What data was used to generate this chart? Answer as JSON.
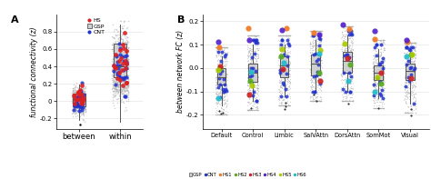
{
  "panel_A": {
    "title": "A",
    "ylabel": "functional connectivity (z)",
    "categories": [
      "between",
      "within"
    ],
    "box_between": {
      "q1": -0.06,
      "median": 0.01,
      "q3": 0.09,
      "wl": -0.22,
      "wh": 0.19
    },
    "box_within": {
      "q1": 0.28,
      "median": 0.4,
      "q3": 0.66,
      "wl": -0.24,
      "wh": 0.88
    },
    "ylim": [
      -0.32,
      1.0
    ],
    "yticks": [
      -0.2,
      0.0,
      0.2,
      0.4,
      0.6,
      0.8
    ],
    "gsp_color": "#b0b0b0",
    "hs_color": "#dd2222",
    "cnt_color": "#2233cc",
    "box_face": "#d0d0d0",
    "box_edge": "#555555"
  },
  "panel_B": {
    "title": "B",
    "ylabel": "between network FC (z)",
    "categories": [
      "Default",
      "Control",
      "Limbic",
      "SalVAttn",
      "DorsAttn",
      "SomMot",
      "Visual"
    ],
    "ylim": [
      -0.26,
      0.23
    ],
    "yticks": [
      -0.2,
      -0.1,
      0.0,
      0.1,
      0.2
    ],
    "box_stats": [
      {
        "q1": -0.07,
        "median": -0.04,
        "q3": 0.0,
        "wl": -0.16,
        "wh": 0.05
      },
      {
        "q1": -0.06,
        "median": -0.02,
        "q3": 0.02,
        "wl": -0.14,
        "wh": 0.1
      },
      {
        "q1": -0.04,
        "median": 0.01,
        "q3": 0.05,
        "wl": -0.12,
        "wh": 0.1
      },
      {
        "q1": -0.03,
        "median": 0.02,
        "q3": 0.06,
        "wl": -0.1,
        "wh": 0.12
      },
      {
        "q1": -0.02,
        "median": 0.03,
        "q3": 0.07,
        "wl": -0.1,
        "wh": 0.14
      },
      {
        "q1": -0.05,
        "median": -0.02,
        "q3": 0.01,
        "wl": -0.13,
        "wh": 0.08
      },
      {
        "q1": -0.05,
        "median": -0.01,
        "q3": 0.02,
        "wl": -0.15,
        "wh": 0.07
      }
    ],
    "hs_colors": [
      "#f07820",
      "#55aa22",
      "#cc2222",
      "#5522cc",
      "#aacc00",
      "#22bbcc"
    ],
    "hs_labels": [
      "HS1",
      "HS2",
      "HS3",
      "HS4",
      "HS5",
      "HS6"
    ],
    "cnt_color": "#2233cc",
    "gsp_color": "#b0b0b0",
    "box_face": "#d0d0d0",
    "box_edge": "#555555"
  }
}
